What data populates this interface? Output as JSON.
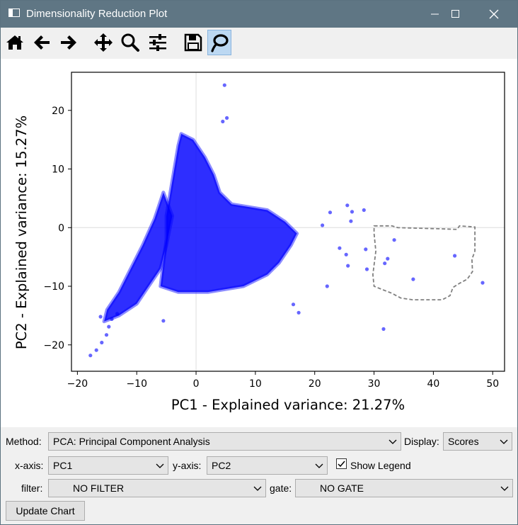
{
  "window": {
    "title": "Dimensionality Reduction Plot"
  },
  "toolbar": {
    "buttons": [
      {
        "name": "home-icon"
      },
      {
        "name": "back-arrow-icon"
      },
      {
        "name": "forward-arrow-icon"
      },
      {
        "name": "pan-icon"
      },
      {
        "name": "zoom-icon"
      },
      {
        "name": "configure-subplots-icon"
      },
      {
        "name": "save-icon"
      },
      {
        "name": "lasso-icon"
      }
    ],
    "active": "lasso-icon"
  },
  "chart_data": {
    "type": "scatter",
    "xlabel": "PC1 - Explained variance: 21.27%",
    "ylabel": "PC2 - Explained variance: 15.27%",
    "xlim": [
      -21,
      52
    ],
    "ylim": [
      -24.5,
      26.5
    ],
    "xticks": [
      -20,
      -10,
      0,
      10,
      20,
      30,
      40,
      50
    ],
    "yticks": [
      -20,
      -10,
      0,
      10,
      20
    ],
    "xtick_labels": [
      "−20",
      "−10",
      "0",
      "10",
      "20",
      "30",
      "40",
      "50"
    ],
    "ytick_labels": [
      "−20",
      "−10",
      "0",
      "10",
      "20"
    ],
    "grid": "zero lines only",
    "marker_color": "#0000ff",
    "points": [
      {
        "x": 4.8,
        "y": 24.3
      },
      {
        "x": 5.2,
        "y": 18.7
      },
      {
        "x": 4.5,
        "y": 18.1
      },
      {
        "x": 25.5,
        "y": 3.8
      },
      {
        "x": 26.3,
        "y": 2.7
      },
      {
        "x": 28.3,
        "y": 3.0
      },
      {
        "x": 26.1,
        "y": 1.1
      },
      {
        "x": 22.6,
        "y": 2.6
      },
      {
        "x": 21.3,
        "y": 0.4
      },
      {
        "x": 24.2,
        "y": -3.5
      },
      {
        "x": 25.3,
        "y": -4.6
      },
      {
        "x": 28.6,
        "y": -3.7
      },
      {
        "x": 25.6,
        "y": -6.5
      },
      {
        "x": 28.8,
        "y": -7.1
      },
      {
        "x": 33.4,
        "y": -2.1
      },
      {
        "x": 32.3,
        "y": -5.3
      },
      {
        "x": 31.8,
        "y": -6.1
      },
      {
        "x": 36.6,
        "y": -8.8
      },
      {
        "x": 43.6,
        "y": -4.8
      },
      {
        "x": 48.3,
        "y": -9.4
      },
      {
        "x": 31.6,
        "y": -17.3
      },
      {
        "x": 16.4,
        "y": -13.1
      },
      {
        "x": 17.3,
        "y": -14.5
      },
      {
        "x": 22.1,
        "y": -10.0
      },
      {
        "x": -5.5,
        "y": -15.9
      },
      {
        "x": -17.8,
        "y": -21.8
      },
      {
        "x": -16.8,
        "y": -20.9
      },
      {
        "x": -15.9,
        "y": -19.6
      },
      {
        "x": -15.1,
        "y": -18.3
      },
      {
        "x": -14.7,
        "y": -16.9
      },
      {
        "x": -14.2,
        "y": -15.6
      },
      {
        "x": -13.3,
        "y": -14.7
      },
      {
        "x": -16.1,
        "y": -15.2
      }
    ],
    "dense_regions": [
      {
        "polygon": [
          [
            -15.5,
            -16
          ],
          [
            -13,
            -15
          ],
          [
            -10,
            -13
          ],
          [
            -8,
            -10
          ],
          [
            -6,
            -7
          ],
          [
            -5,
            -3
          ],
          [
            -4,
            2
          ],
          [
            -5.5,
            6
          ],
          [
            -7,
            1.5
          ],
          [
            -9,
            -3
          ],
          [
            -11,
            -7
          ],
          [
            -13,
            -11
          ],
          [
            -15,
            -14
          ]
        ]
      },
      {
        "polygon": [
          [
            -6,
            -10
          ],
          [
            -3,
            -11
          ],
          [
            2,
            -11
          ],
          [
            8,
            -10
          ],
          [
            12,
            -8
          ],
          [
            14,
            -6
          ],
          [
            16,
            -3
          ],
          [
            17,
            -1
          ],
          [
            15,
            1
          ],
          [
            12,
            3
          ],
          [
            9,
            3.5
          ],
          [
            6,
            4
          ],
          [
            4,
            6
          ],
          [
            3,
            9
          ],
          [
            1.5,
            12
          ],
          [
            -0.5,
            15
          ],
          [
            -2.5,
            16
          ],
          [
            -3,
            14
          ],
          [
            -3.5,
            11
          ],
          [
            -4,
            8
          ],
          [
            -4.5,
            5
          ],
          [
            -5,
            2
          ],
          [
            -5,
            -2
          ],
          [
            -5.5,
            -6
          ]
        ]
      }
    ],
    "selection_gate": [
      [
        30,
        0.3
      ],
      [
        33,
        0.3
      ],
      [
        34,
        0
      ],
      [
        41,
        -0.2
      ],
      [
        44,
        -0.3
      ],
      [
        44.4,
        0.3
      ],
      [
        47,
        0.1
      ],
      [
        47,
        -4
      ],
      [
        46.5,
        -5.4
      ],
      [
        46.6,
        -7.5
      ],
      [
        45.7,
        -8.8
      ],
      [
        44.4,
        -9.5
      ],
      [
        43.3,
        -10.2
      ],
      [
        42.8,
        -11.6
      ],
      [
        41.5,
        -12.3
      ],
      [
        36.5,
        -12.3
      ],
      [
        34.5,
        -12.0
      ],
      [
        33,
        -11.2
      ],
      [
        31.5,
        -10.6
      ],
      [
        30,
        -10
      ],
      [
        29.8,
        -8
      ],
      [
        30.3,
        -4
      ],
      [
        30,
        -1
      ]
    ]
  },
  "controls": {
    "method_label": "Method:",
    "method_value": "PCA: Principal Component Analysis",
    "display_label": "Display:",
    "display_value": "Scores",
    "xaxis_label": "x-axis:",
    "xaxis_value": "PC1",
    "yaxis_label": "y-axis:",
    "yaxis_value": "PC2",
    "show_legend_label": "Show Legend",
    "show_legend_checked": true,
    "filter_label": "filter:",
    "filter_value": "NO FILTER",
    "gate_label": "gate:",
    "gate_value": "NO GATE",
    "update_button": "Update Chart"
  }
}
